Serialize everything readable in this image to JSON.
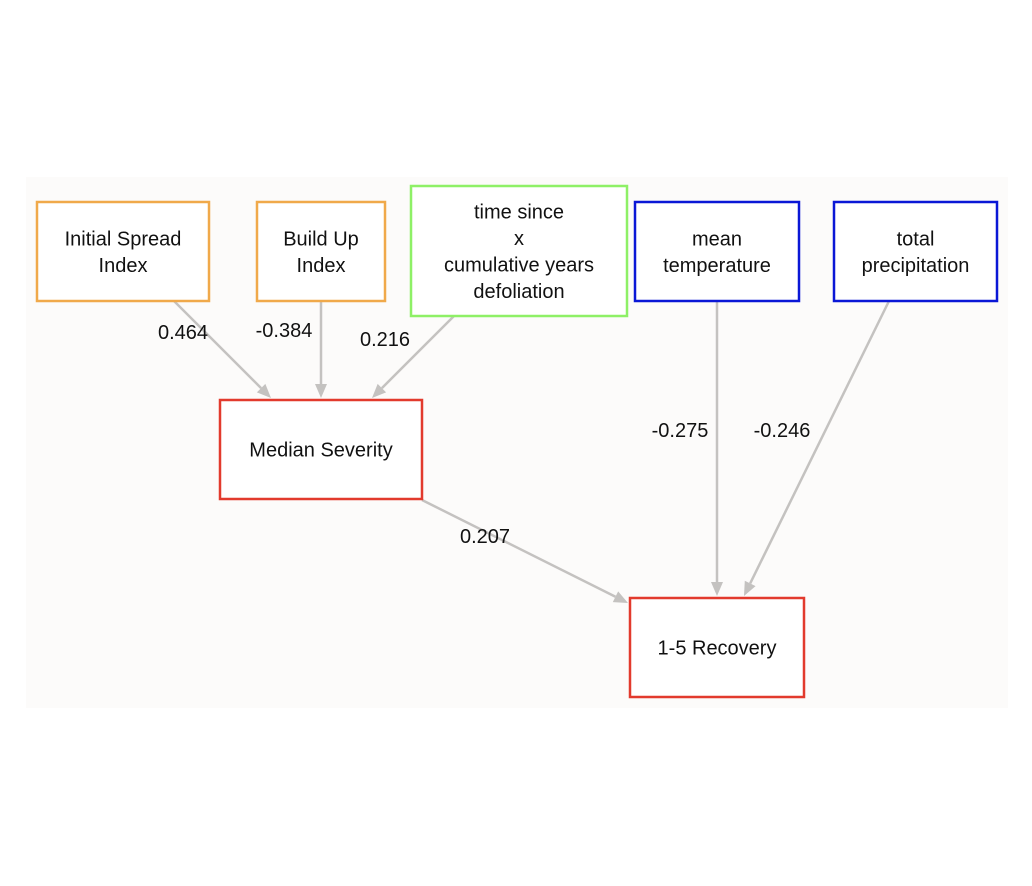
{
  "colors": {
    "background": "#fcfbfa",
    "edge": "#c4c2c0",
    "orange": "#f0a94a",
    "green": "#8ef066",
    "blue": "#0a17d6",
    "red": "#e23a2d"
  },
  "nodes": [
    {
      "id": "initial-spread-index",
      "lines": [
        "Initial Spread",
        "Index"
      ],
      "color": "orange"
    },
    {
      "id": "build-up-index",
      "lines": [
        "Build Up",
        "Index"
      ],
      "color": "orange"
    },
    {
      "id": "time-since-defoliation",
      "lines": [
        "time since",
        "x",
        "cumulative years",
        "defoliation"
      ],
      "color": "green"
    },
    {
      "id": "mean-temperature",
      "lines": [
        "mean",
        "temperature"
      ],
      "color": "blue"
    },
    {
      "id": "total-precipitation",
      "lines": [
        "total",
        "precipitation"
      ],
      "color": "blue"
    },
    {
      "id": "median-severity",
      "lines": [
        "Median Severity"
      ],
      "color": "red"
    },
    {
      "id": "recovery",
      "lines": [
        "1-5 Recovery"
      ],
      "color": "red"
    }
  ],
  "edges": [
    {
      "from": "initial-spread-index",
      "to": "median-severity",
      "label": "0.464"
    },
    {
      "from": "build-up-index",
      "to": "median-severity",
      "label": "-0.384"
    },
    {
      "from": "time-since-defoliation",
      "to": "median-severity",
      "label": "0.216"
    },
    {
      "from": "median-severity",
      "to": "recovery",
      "label": "0.207"
    },
    {
      "from": "mean-temperature",
      "to": "recovery",
      "label": "-0.275"
    },
    {
      "from": "total-precipitation",
      "to": "recovery",
      "label": "-0.246"
    }
  ]
}
